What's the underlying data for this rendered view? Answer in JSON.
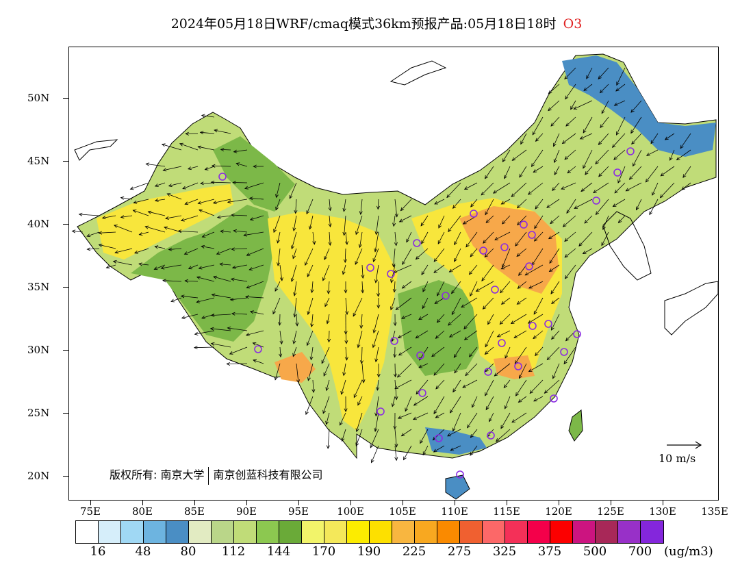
{
  "title": {
    "main": "2024年05月18日WRF/cmaq模式36km预报产品:05月18日18时",
    "species": "O3"
  },
  "lat_labels": [
    "50N",
    "45N",
    "40N",
    "35N",
    "30N",
    "25N",
    "20N"
  ],
  "lon_labels": [
    "75E",
    "80E",
    "85E",
    "90E",
    "95E",
    "100E",
    "105E",
    "110E",
    "115E",
    "120E",
    "125E",
    "130E",
    "135E"
  ],
  "copyright": {
    "part1": "版权所有: 南京大学",
    "part2": "南京创蓝科技有限公司"
  },
  "wind_reference": "10 m/s",
  "colorbar": {
    "colors": [
      "#ffffff",
      "#d6eefa",
      "#a0d8f4",
      "#6db4e0",
      "#4a8ec4",
      "#e2ebc2",
      "#bad689",
      "#c0dc78",
      "#8cc850",
      "#6aaa38",
      "#f2f46a",
      "#f4e85a",
      "#fcec00",
      "#fde000",
      "#f8b640",
      "#f8a820",
      "#fa8a00",
      "#f06030",
      "#fc6868",
      "#f43058",
      "#f4004a",
      "#fc0000",
      "#cc1480",
      "#a82858",
      "#9830c8",
      "#8426dc"
    ],
    "labels": [
      "16",
      "48",
      "80",
      "112",
      "144",
      "170",
      "190",
      "225",
      "275",
      "325",
      "375",
      "500",
      "700"
    ],
    "unit": "(ug/m3)"
  },
  "legend_icons": {
    "station_marker": "circle-marker-icon",
    "wind_arrow": "arrow-icon"
  },
  "map_colors": {
    "land_green": "#7cb848",
    "land_light_green": "#c0dc78",
    "yellow": "#f8e63c",
    "orange": "#f7a84a",
    "blue": "#4a8ec4",
    "station": "#8a2be2"
  }
}
